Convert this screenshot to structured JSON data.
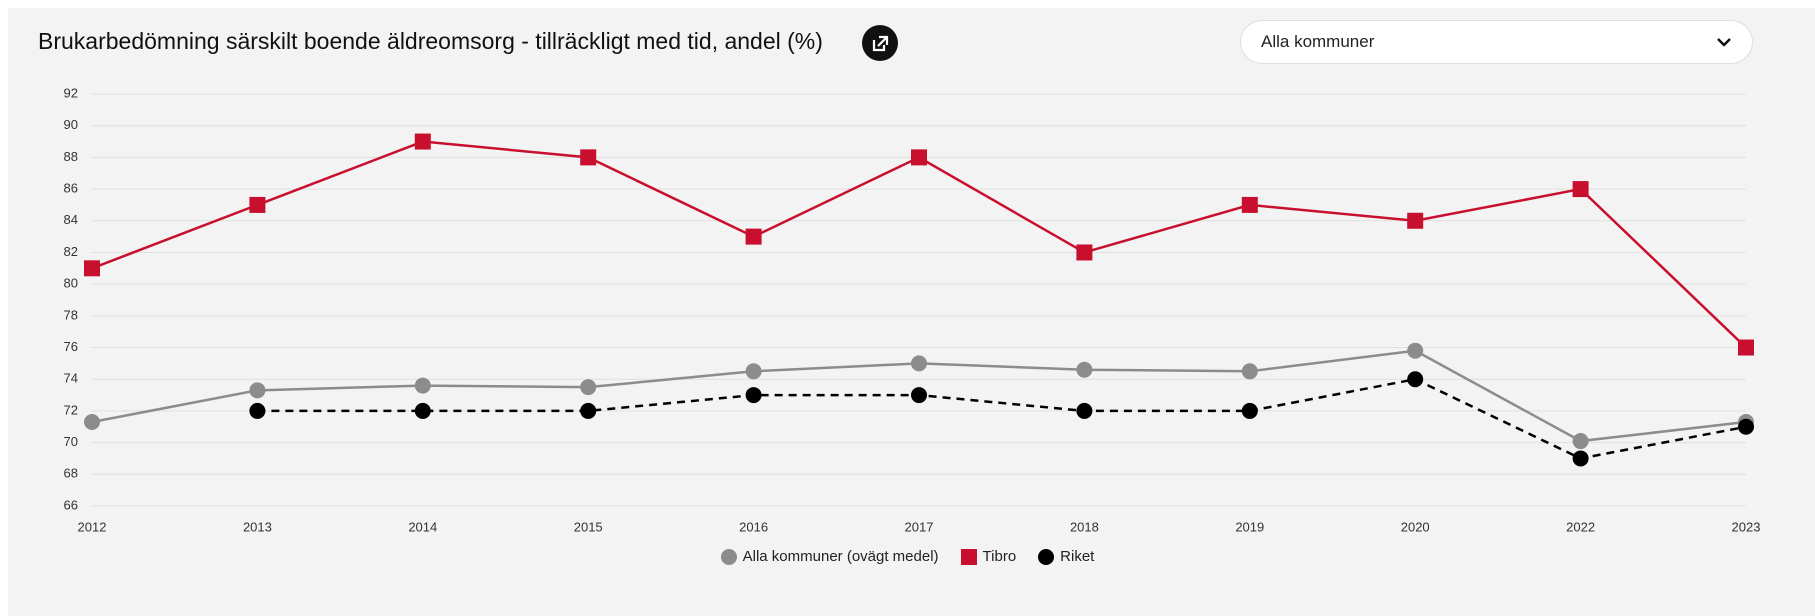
{
  "chart_data": {
    "type": "line",
    "title": "Brukarbedömning särskilt boende äldreomsorg - tillräckligt med tid, andel (%)",
    "categories": [
      "2012",
      "2013",
      "2014",
      "2015",
      "2016",
      "2017",
      "2018",
      "2019",
      "2020",
      "2022",
      "2023"
    ],
    "series": [
      {
        "name": "Alla kommuner (ovägt medel)",
        "color": "#8c8c8c",
        "marker": "circle",
        "dashed": false,
        "values": [
          71.3,
          73.3,
          73.6,
          73.5,
          74.5,
          75.0,
          74.6,
          74.5,
          75.8,
          70.1,
          71.3
        ]
      },
      {
        "name": "Tibro",
        "color": "#c8102e",
        "marker": "square",
        "dashed": false,
        "values": [
          81,
          85,
          89,
          88,
          83,
          88,
          82,
          85,
          84,
          86,
          76
        ]
      },
      {
        "name": "Riket",
        "color": "#000000",
        "marker": "circle",
        "dashed": true,
        "values": [
          null,
          72,
          72,
          72,
          73,
          73,
          72,
          72,
          74,
          69,
          71
        ]
      }
    ],
    "ylim": [
      66,
      92
    ],
    "yticks": [
      66,
      68,
      70,
      72,
      74,
      76,
      78,
      80,
      82,
      84,
      86,
      88,
      90,
      92
    ],
    "grid": true,
    "legend": "bottom"
  },
  "dropdown": {
    "selected": "Alla kommuner"
  }
}
